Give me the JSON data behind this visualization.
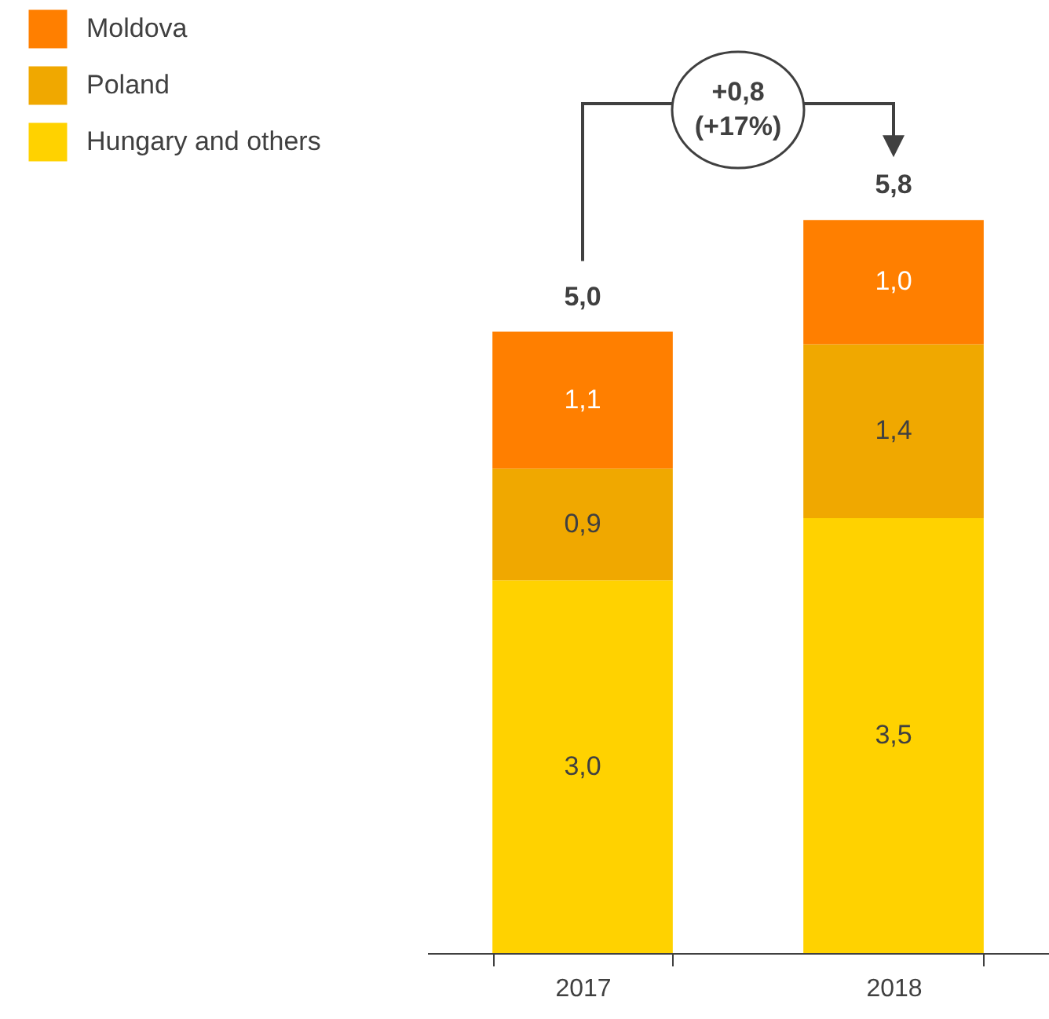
{
  "chart_data": {
    "type": "bar",
    "stacked": true,
    "categories": [
      "2017",
      "2018"
    ],
    "series": [
      {
        "name": "Hungary and others",
        "color": "#ffd200",
        "values": [
          3.0,
          3.5
        ],
        "value_labels": [
          "3,0",
          "3,5"
        ]
      },
      {
        "name": "Poland",
        "color": "#f0a800",
        "values": [
          0.9,
          1.4
        ],
        "value_labels": [
          "0,9",
          "1,4"
        ]
      },
      {
        "name": "Moldova",
        "color": "#ff7f00",
        "values": [
          1.1,
          1.0
        ],
        "value_labels": [
          "1,1",
          "1,0"
        ]
      }
    ],
    "totals": [
      "5,0",
      "5,8"
    ],
    "annotations": [
      "+0,8 (+17%)"
    ],
    "legend": "top left"
  }
}
